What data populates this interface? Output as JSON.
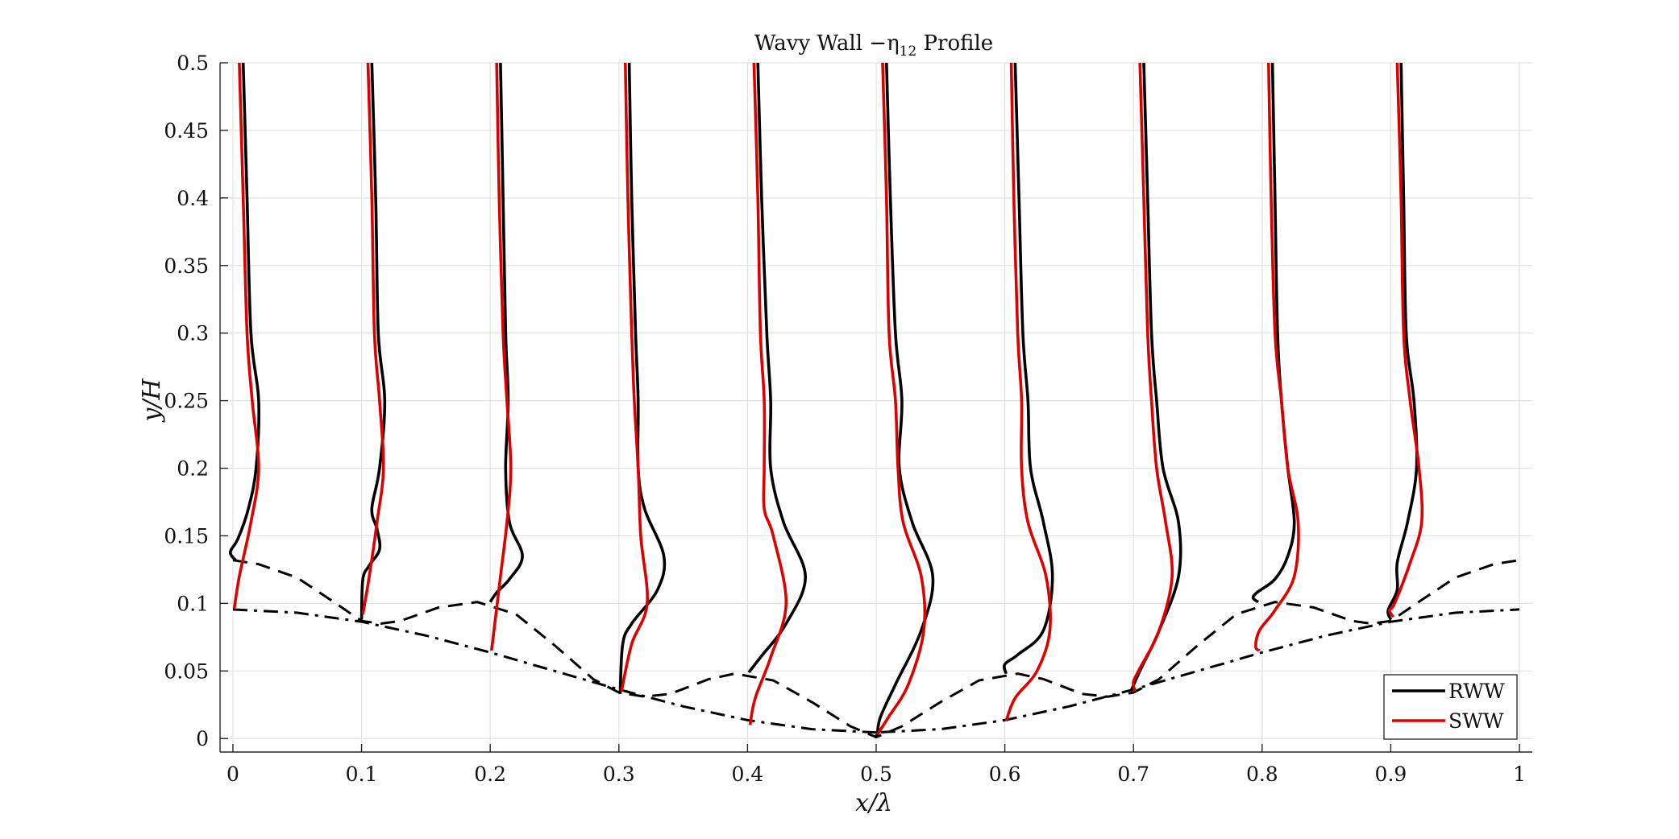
{
  "chart_data": {
    "type": "line",
    "title": "Wavy Wall −η",
    "title_subscript": "12",
    "title_suffix": " Profile",
    "xlabel": "x/λ",
    "ylabel": "y/H",
    "xlim": [
      -0.01,
      1.01
    ],
    "ylim": [
      -0.01,
      0.5
    ],
    "xticks": [
      0,
      0.1,
      0.2,
      0.3,
      0.4,
      0.5,
      0.6,
      0.7,
      0.8,
      0.9,
      1
    ],
    "xtick_labels": [
      "0",
      "0.1",
      "0.2",
      "0.3",
      "0.4",
      "0.5",
      "0.6",
      "0.7",
      "0.8",
      "0.9",
      "1"
    ],
    "yticks": [
      0,
      0.05,
      0.1,
      0.15,
      0.2,
      0.25,
      0.3,
      0.35,
      0.4,
      0.45,
      0.5
    ],
    "ytick_labels": [
      "0",
      "0.05",
      "0.1",
      "0.15",
      "0.2",
      "0.25",
      "0.3",
      "0.35",
      "0.4",
      "0.45",
      "0.5"
    ],
    "grid": true,
    "legend_position": "bottom-right",
    "legend": [
      {
        "label": "RWW",
        "color": "#000000"
      },
      {
        "label": "SWW",
        "color": "#dd0000"
      }
    ],
    "series": [
      {
        "name": "RWW",
        "color": "#000000",
        "style": "solid",
        "profiles": [
          [
            [
              0.008,
              0.5
            ],
            [
              0.011,
              0.4
            ],
            [
              0.014,
              0.3
            ],
            [
              0.02,
              0.25
            ],
            [
              0.018,
              0.2
            ],
            [
              0.012,
              0.17
            ],
            [
              0.004,
              0.148
            ],
            [
              -0.002,
              0.138
            ],
            [
              0.002,
              0.132
            ]
          ],
          [
            [
              0.108,
              0.5
            ],
            [
              0.111,
              0.4
            ],
            [
              0.113,
              0.3
            ],
            [
              0.118,
              0.25
            ],
            [
              0.114,
              0.2
            ],
            [
              0.108,
              0.17
            ],
            [
              0.112,
              0.155
            ],
            [
              0.114,
              0.14
            ],
            [
              0.106,
              0.128
            ],
            [
              0.101,
              0.118
            ],
            [
              0.1,
              0.088
            ]
          ],
          [
            [
              0.208,
              0.5
            ],
            [
              0.21,
              0.4
            ],
            [
              0.212,
              0.3
            ],
            [
              0.214,
              0.25
            ],
            [
              0.212,
              0.2
            ],
            [
              0.215,
              0.16
            ],
            [
              0.225,
              0.135
            ],
            [
              0.215,
              0.118
            ],
            [
              0.205,
              0.108
            ],
            [
              0.2,
              0.101
            ]
          ],
          [
            [
              0.308,
              0.5
            ],
            [
              0.31,
              0.4
            ],
            [
              0.313,
              0.3
            ],
            [
              0.315,
              0.25
            ],
            [
              0.315,
              0.2
            ],
            [
              0.32,
              0.17
            ],
            [
              0.335,
              0.135
            ],
            [
              0.33,
              0.11
            ],
            [
              0.31,
              0.085
            ],
            [
              0.303,
              0.07
            ],
            [
              0.301,
              0.033
            ]
          ],
          [
            [
              0.408,
              0.5
            ],
            [
              0.411,
              0.4
            ],
            [
              0.415,
              0.3
            ],
            [
              0.418,
              0.25
            ],
            [
              0.418,
              0.2
            ],
            [
              0.428,
              0.16
            ],
            [
              0.445,
              0.12
            ],
            [
              0.43,
              0.085
            ],
            [
              0.41,
              0.06
            ],
            [
              0.401,
              0.049
            ]
          ],
          [
            [
              0.508,
              0.5
            ],
            [
              0.511,
              0.4
            ],
            [
              0.515,
              0.3
            ],
            [
              0.52,
              0.25
            ],
            [
              0.518,
              0.2
            ],
            [
              0.528,
              0.16
            ],
            [
              0.544,
              0.12
            ],
            [
              0.535,
              0.08
            ],
            [
              0.515,
              0.04
            ],
            [
              0.503,
              0.015
            ],
            [
              0.501,
              0.001
            ]
          ],
          [
            [
              0.608,
              0.5
            ],
            [
              0.611,
              0.4
            ],
            [
              0.614,
              0.3
            ],
            [
              0.618,
              0.25
            ],
            [
              0.62,
              0.2
            ],
            [
              0.63,
              0.16
            ],
            [
              0.637,
              0.12
            ],
            [
              0.63,
              0.08
            ],
            [
              0.61,
              0.062
            ],
            [
              0.6,
              0.055
            ],
            [
              0.601,
              0.048
            ]
          ],
          [
            [
              0.708,
              0.5
            ],
            [
              0.711,
              0.4
            ],
            [
              0.714,
              0.3
            ],
            [
              0.718,
              0.25
            ],
            [
              0.723,
              0.2
            ],
            [
              0.735,
              0.16
            ],
            [
              0.735,
              0.12
            ],
            [
              0.72,
              0.08
            ],
            [
              0.705,
              0.05
            ],
            [
              0.698,
              0.035
            ]
          ],
          [
            [
              0.808,
              0.5
            ],
            [
              0.81,
              0.4
            ],
            [
              0.812,
              0.3
            ],
            [
              0.815,
              0.25
            ],
            [
              0.82,
              0.2
            ],
            [
              0.825,
              0.16
            ],
            [
              0.82,
              0.135
            ],
            [
              0.81,
              0.118
            ],
            [
              0.796,
              0.108
            ],
            [
              0.793,
              0.104
            ],
            [
              0.797,
              0.101
            ]
          ],
          [
            [
              0.908,
              0.5
            ],
            [
              0.91,
              0.4
            ],
            [
              0.912,
              0.3
            ],
            [
              0.918,
              0.25
            ],
            [
              0.92,
              0.2
            ],
            [
              0.913,
              0.16
            ],
            [
              0.905,
              0.13
            ],
            [
              0.905,
              0.11
            ],
            [
              0.898,
              0.095
            ],
            [
              0.9,
              0.088
            ]
          ]
        ]
      },
      {
        "name": "SWW",
        "color": "#dd0000",
        "style": "solid",
        "profiles": [
          [
            [
              0.005,
              0.5
            ],
            [
              0.008,
              0.4
            ],
            [
              0.011,
              0.3
            ],
            [
              0.015,
              0.25
            ],
            [
              0.02,
              0.2
            ],
            [
              0.014,
              0.16
            ],
            [
              0.005,
              0.12
            ],
            [
              0.001,
              0.096
            ]
          ],
          [
            [
              0.105,
              0.5
            ],
            [
              0.108,
              0.4
            ],
            [
              0.11,
              0.3
            ],
            [
              0.114,
              0.25
            ],
            [
              0.117,
              0.2
            ],
            [
              0.112,
              0.16
            ],
            [
              0.106,
              0.12
            ],
            [
              0.101,
              0.092
            ]
          ],
          [
            [
              0.205,
              0.5
            ],
            [
              0.207,
              0.4
            ],
            [
              0.21,
              0.3
            ],
            [
              0.213,
              0.25
            ],
            [
              0.216,
              0.2
            ],
            [
              0.213,
              0.16
            ],
            [
              0.208,
              0.12
            ],
            [
              0.201,
              0.065
            ]
          ],
          [
            [
              0.305,
              0.5
            ],
            [
              0.307,
              0.4
            ],
            [
              0.31,
              0.3
            ],
            [
              0.312,
              0.25
            ],
            [
              0.315,
              0.2
            ],
            [
              0.317,
              0.15
            ],
            [
              0.322,
              0.1
            ],
            [
              0.31,
              0.07
            ],
            [
              0.302,
              0.035
            ]
          ],
          [
            [
              0.405,
              0.5
            ],
            [
              0.408,
              0.4
            ],
            [
              0.41,
              0.3
            ],
            [
              0.413,
              0.25
            ],
            [
              0.413,
              0.2
            ],
            [
              0.413,
              0.17
            ],
            [
              0.42,
              0.15
            ],
            [
              0.43,
              0.1
            ],
            [
              0.418,
              0.06
            ],
            [
              0.406,
              0.03
            ],
            [
              0.402,
              0.01
            ]
          ],
          [
            [
              0.505,
              0.5
            ],
            [
              0.508,
              0.4
            ],
            [
              0.51,
              0.3
            ],
            [
              0.515,
              0.25
            ],
            [
              0.517,
              0.2
            ],
            [
              0.521,
              0.16
            ],
            [
              0.535,
              0.12
            ],
            [
              0.537,
              0.08
            ],
            [
              0.525,
              0.04
            ],
            [
              0.509,
              0.015
            ],
            [
              0.501,
              0.003
            ]
          ],
          [
            [
              0.605,
              0.5
            ],
            [
              0.607,
              0.4
            ],
            [
              0.61,
              0.3
            ],
            [
              0.613,
              0.25
            ],
            [
              0.613,
              0.2
            ],
            [
              0.618,
              0.16
            ],
            [
              0.632,
              0.12
            ],
            [
              0.635,
              0.08
            ],
            [
              0.625,
              0.05
            ],
            [
              0.608,
              0.03
            ],
            [
              0.601,
              0.013
            ]
          ],
          [
            [
              0.705,
              0.5
            ],
            [
              0.708,
              0.4
            ],
            [
              0.711,
              0.3
            ],
            [
              0.714,
              0.25
            ],
            [
              0.718,
              0.2
            ],
            [
              0.725,
              0.16
            ],
            [
              0.73,
              0.12
            ],
            [
              0.72,
              0.08
            ],
            [
              0.705,
              0.052
            ],
            [
              0.7,
              0.042
            ],
            [
              0.701,
              0.035
            ]
          ],
          [
            [
              0.805,
              0.5
            ],
            [
              0.807,
              0.4
            ],
            [
              0.81,
              0.3
            ],
            [
              0.815,
              0.25
            ],
            [
              0.82,
              0.2
            ],
            [
              0.828,
              0.16
            ],
            [
              0.825,
              0.12
            ],
            [
              0.81,
              0.095
            ],
            [
              0.798,
              0.08
            ],
            [
              0.795,
              0.068
            ],
            [
              0.798,
              0.065
            ]
          ],
          [
            [
              0.905,
              0.5
            ],
            [
              0.908,
              0.4
            ],
            [
              0.91,
              0.3
            ],
            [
              0.915,
              0.25
            ],
            [
              0.922,
              0.2
            ],
            [
              0.924,
              0.16
            ],
            [
              0.915,
              0.13
            ],
            [
              0.903,
              0.1
            ],
            [
              0.899,
              0.095
            ],
            [
              0.902,
              0.09
            ]
          ]
        ]
      },
      {
        "name": "",
        "color": "#000000",
        "style": "dashed",
        "curve": [
          [
            0,
            0.132
          ],
          [
            0.02,
            0.129
          ],
          [
            0.05,
            0.119
          ],
          [
            0.08,
            0.1
          ],
          [
            0.1,
            0.087
          ],
          [
            0.115,
            0.085
          ],
          [
            0.13,
            0.087
          ],
          [
            0.16,
            0.097
          ],
          [
            0.19,
            0.101
          ],
          [
            0.22,
            0.092
          ],
          [
            0.25,
            0.069
          ],
          [
            0.28,
            0.044
          ],
          [
            0.3,
            0.034
          ],
          [
            0.32,
            0.031
          ],
          [
            0.34,
            0.033
          ],
          [
            0.37,
            0.044
          ],
          [
            0.39,
            0.048
          ],
          [
            0.42,
            0.043
          ],
          [
            0.45,
            0.027
          ],
          [
            0.48,
            0.009
          ],
          [
            0.5,
            0.001
          ],
          [
            0.52,
            0.009
          ],
          [
            0.55,
            0.027
          ],
          [
            0.58,
            0.043
          ],
          [
            0.61,
            0.048
          ],
          [
            0.63,
            0.044
          ],
          [
            0.66,
            0.033
          ],
          [
            0.68,
            0.031
          ],
          [
            0.7,
            0.034
          ],
          [
            0.72,
            0.044
          ],
          [
            0.75,
            0.069
          ],
          [
            0.78,
            0.092
          ],
          [
            0.81,
            0.101
          ],
          [
            0.84,
            0.097
          ],
          [
            0.87,
            0.087
          ],
          [
            0.885,
            0.085
          ],
          [
            0.9,
            0.087
          ],
          [
            0.92,
            0.1
          ],
          [
            0.95,
            0.119
          ],
          [
            0.98,
            0.129
          ],
          [
            1.0,
            0.132
          ]
        ]
      },
      {
        "name": "",
        "color": "#000000",
        "style": "dashdot",
        "curve": [
          [
            0,
            0.0955
          ],
          [
            0.05,
            0.0931
          ],
          [
            0.1,
            0.0864
          ],
          [
            0.15,
            0.0762
          ],
          [
            0.2,
            0.0637
          ],
          [
            0.25,
            0.05
          ],
          [
            0.3,
            0.0363
          ],
          [
            0.35,
            0.0238
          ],
          [
            0.4,
            0.0136
          ],
          [
            0.45,
            0.0069
          ],
          [
            0.5,
            0.0045
          ],
          [
            0.5,
            0.0
          ],
          [
            0.5,
            0.0045
          ],
          [
            0.55,
            0.0069
          ],
          [
            0.6,
            0.0136
          ],
          [
            0.65,
            0.0238
          ],
          [
            0.7,
            0.0363
          ],
          [
            0.75,
            0.05
          ],
          [
            0.8,
            0.0637
          ],
          [
            0.85,
            0.0762
          ],
          [
            0.9,
            0.0864
          ],
          [
            0.95,
            0.0931
          ],
          [
            1.0,
            0.0955
          ]
        ]
      }
    ]
  }
}
